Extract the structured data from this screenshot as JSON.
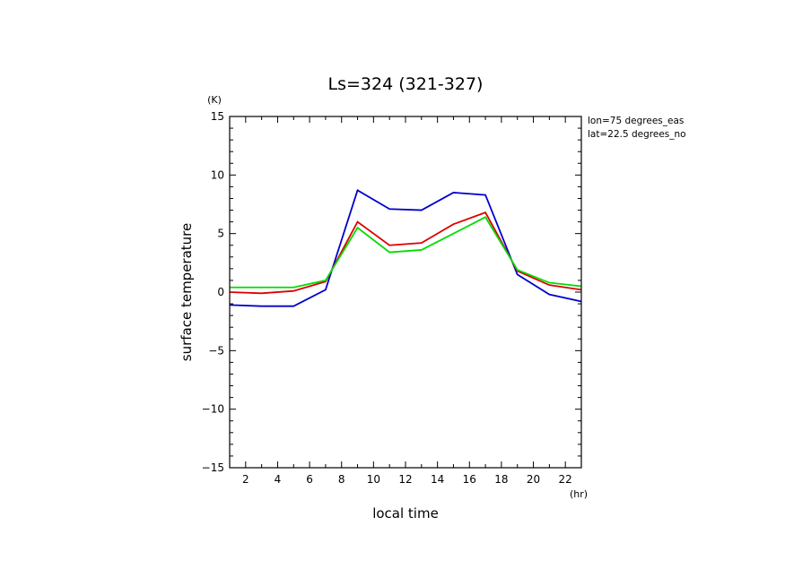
{
  "chart_data": {
    "type": "line",
    "title": "Ls=324 (321-327)",
    "xlabel": "local time",
    "ylabel": "surface temperature",
    "x_unit": "(hr)",
    "y_unit": "(K)",
    "xlim": [
      1,
      23
    ],
    "ylim": [
      -15,
      15
    ],
    "x_ticks": [
      2,
      4,
      6,
      8,
      10,
      12,
      14,
      16,
      18,
      20,
      22
    ],
    "y_ticks": [
      -15,
      -10,
      -5,
      0,
      5,
      10,
      15
    ],
    "annotations": [
      "lon=75 degrees_eas",
      "lat=22.5 degrees_no"
    ],
    "x": [
      1,
      3,
      5,
      7,
      9,
      11,
      13,
      15,
      17,
      19,
      21,
      23
    ],
    "series": [
      {
        "color": "#0000cc",
        "values": [
          -1.1,
          -1.2,
          -1.2,
          0.2,
          8.7,
          7.1,
          7.0,
          8.5,
          8.3,
          1.5,
          -0.2,
          -0.8
        ]
      },
      {
        "color": "#dd0000",
        "values": [
          0.0,
          -0.1,
          0.1,
          0.9,
          6.0,
          4.0,
          4.2,
          5.8,
          6.8,
          1.8,
          0.6,
          0.2
        ]
      },
      {
        "color": "#00dd00",
        "values": [
          0.4,
          0.4,
          0.4,
          1.0,
          5.5,
          3.4,
          3.6,
          5.0,
          6.4,
          1.9,
          0.8,
          0.5
        ]
      }
    ],
    "grid": false,
    "legend": "none"
  }
}
